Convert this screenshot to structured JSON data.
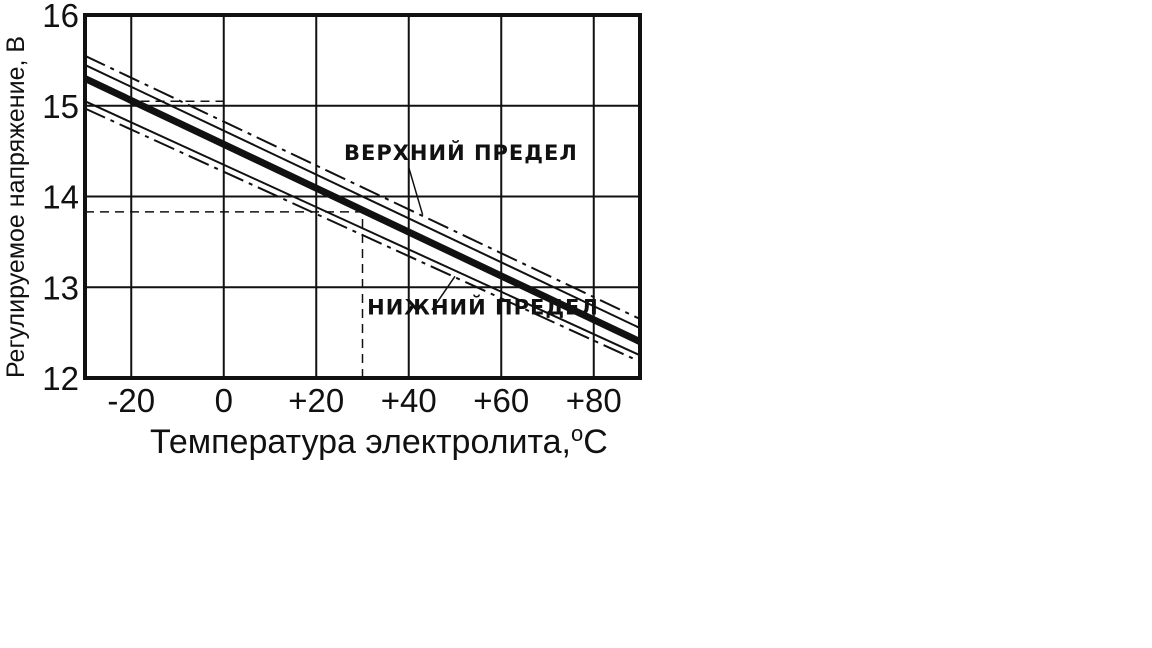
{
  "chart_data": {
    "type": "line",
    "title": "",
    "xlabel": "Температура электролита,",
    "xlabel_sup": "o",
    "xlabel_unit": "C",
    "ylabel": "Регулируемое напряжение, В",
    "xlim": [
      -30,
      90
    ],
    "ylim": [
      12,
      16
    ],
    "x_ticks": [
      -20,
      0,
      20,
      40,
      60,
      80
    ],
    "x_tick_labels": [
      "-20",
      "0",
      "+20",
      "+40",
      "+60",
      "+80"
    ],
    "y_ticks": [
      12,
      13,
      14,
      15,
      16
    ],
    "y_tick_labels": [
      "12",
      "13",
      "14",
      "15",
      "16"
    ],
    "grid": true,
    "series": [
      {
        "style": "thick-solid",
        "x": [
          -30,
          90
        ],
        "values": [
          15.3,
          12.4
        ]
      },
      {
        "style": "thin-solid-upper",
        "x": [
          -30,
          90
        ],
        "values": [
          15.45,
          12.55
        ]
      },
      {
        "style": "thin-solid-lower",
        "x": [
          -30,
          90
        ],
        "values": [
          15.05,
          12.25
        ]
      },
      {
        "style": "dashdot-upper",
        "x": [
          -30,
          90
        ],
        "values": [
          15.55,
          12.65
        ]
      },
      {
        "style": "dashdot-lower",
        "x": [
          -30,
          90
        ],
        "values": [
          14.97,
          12.18
        ]
      }
    ],
    "reference_lines": [
      {
        "orientation": "h",
        "y": 14.0,
        "x_from": -30,
        "x_to": 30,
        "style": "dashed"
      },
      {
        "orientation": "h",
        "y": 13.83,
        "x_from": -30,
        "x_to": 30,
        "style": "dashed"
      },
      {
        "orientation": "h",
        "y": 15.05,
        "x_from": -18,
        "x_to": 0,
        "style": "dashed"
      },
      {
        "orientation": "v",
        "x": 30,
        "y_from": 12,
        "y_to": 13.83,
        "style": "dashed"
      },
      {
        "orientation": "v",
        "x": 0,
        "y_from": 14.1,
        "y_to": 15.05,
        "style": "dashed"
      }
    ],
    "annotations": [
      {
        "text": "ВЕРХНИЙ ПРЕДЕЛ",
        "x": 26,
        "y": 14.4
      },
      {
        "text": "НИЖНИЙ ПРЕДЕЛ",
        "x": 31,
        "y": 12.7
      }
    ]
  }
}
